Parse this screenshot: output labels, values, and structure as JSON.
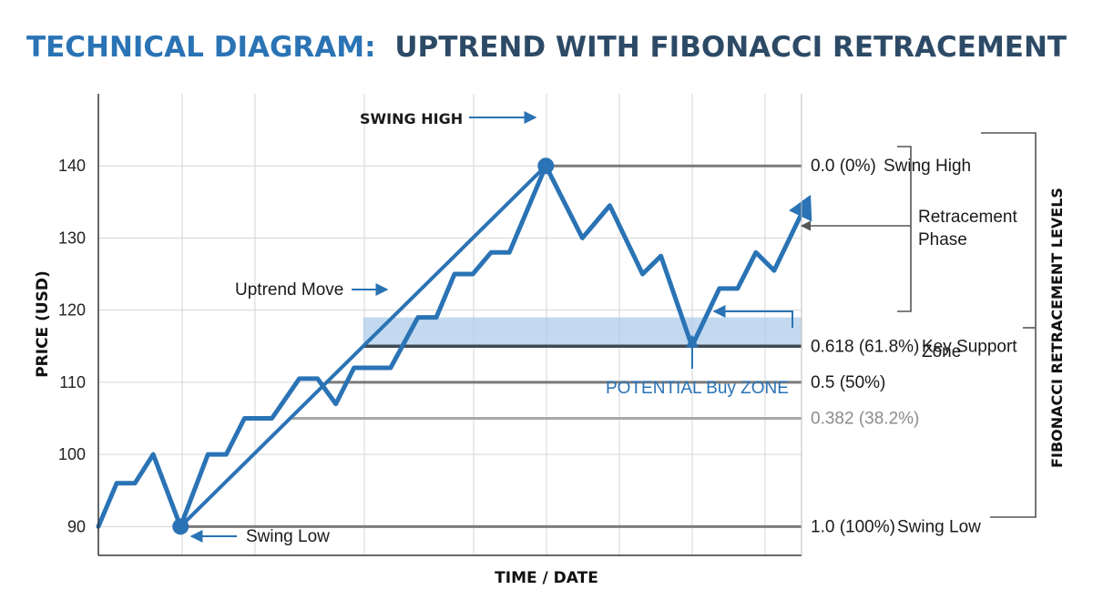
{
  "title_part1": "TECHNICAL DIAGRAM:",
  "title_part2": "UPTREND WITH FIBONACCI RETRACEMENT",
  "colors": {
    "accent": "#2a73b5",
    "title_dark": "#2c4a66",
    "zone_fill": "#a9c9e8",
    "grid": "#d6d6d6",
    "level_line": "#7a7a7a",
    "level_line_dark": "#404a54"
  },
  "chart_data": {
    "type": "line",
    "title": "TECHNICAL DIAGRAM: UPTREND WITH FIBONACCI RETRACEMENT",
    "xlabel": "TIME / DATE",
    "ylabel": "PRICE (USD)",
    "ylim": [
      86,
      150
    ],
    "yticks": [
      90,
      100,
      110,
      120,
      130,
      140
    ],
    "x_range": [
      0,
      38.5
    ],
    "grid": true,
    "series": [
      {
        "values": [
          [
            0,
            90
          ],
          [
            1,
            96
          ],
          [
            2,
            96
          ],
          [
            3,
            100
          ],
          [
            4.5,
            90
          ],
          [
            6,
            100
          ],
          [
            7,
            100
          ],
          [
            8,
            105
          ],
          [
            9.5,
            105
          ],
          [
            11,
            110.5
          ],
          [
            12,
            110.5
          ],
          [
            13,
            107
          ],
          [
            14,
            112
          ],
          [
            16,
            112
          ],
          [
            17.5,
            119
          ],
          [
            18.5,
            119
          ],
          [
            19.5,
            125
          ],
          [
            20.5,
            125
          ],
          [
            21.5,
            128
          ],
          [
            22.5,
            128
          ],
          [
            24.5,
            140
          ],
          [
            26.5,
            130
          ],
          [
            28,
            134.5
          ],
          [
            29.8,
            125
          ],
          [
            30.8,
            127.5
          ],
          [
            32.5,
            115
          ],
          [
            34,
            123
          ],
          [
            35,
            123
          ],
          [
            36,
            128
          ],
          [
            37,
            125.5
          ],
          [
            39,
            136
          ]
        ]
      }
    ],
    "trendline": {
      "from": [
        4.5,
        90
      ],
      "to": [
        24.5,
        140
      ]
    },
    "buy_zone": {
      "x_from": 14.5,
      "x_to": 38.5,
      "y_from": 115,
      "y_to": 119
    },
    "levels": [
      {
        "ratio": "0.0 (0%)",
        "value": 140,
        "x_start": 24.5,
        "label": "0.0 (0%)",
        "note": "Swing High"
      },
      {
        "ratio": "0.382",
        "value": 105,
        "x_start": 10.5,
        "label": "0.382 (38.2%)",
        "note": ""
      },
      {
        "ratio": "0.5",
        "value": 110,
        "x_start": 12.5,
        "label": "0.5 (50%)",
        "note": ""
      },
      {
        "ratio": "0.618",
        "value": 115,
        "x_start": 14.5,
        "label": "0.618 (61.8%)",
        "note": "Key Support"
      },
      {
        "ratio": "1.0",
        "value": 90,
        "x_start": 4.5,
        "label": "1.0 (100%)",
        "note": "Swing Low"
      }
    ],
    "annotations": {
      "swing_high": "SWING HIGH",
      "swing_low": "Swing Low",
      "uptrend_move": "Uptrend Move",
      "buy_zone": "POTENTIAL Buy ZONE",
      "retracement_line1": "Retracement",
      "retracement_line2": "Phase",
      "key_support_line2": "Zone",
      "fib_levels_title": "FIBONACCI RETRACEMENT LEVELS"
    }
  }
}
